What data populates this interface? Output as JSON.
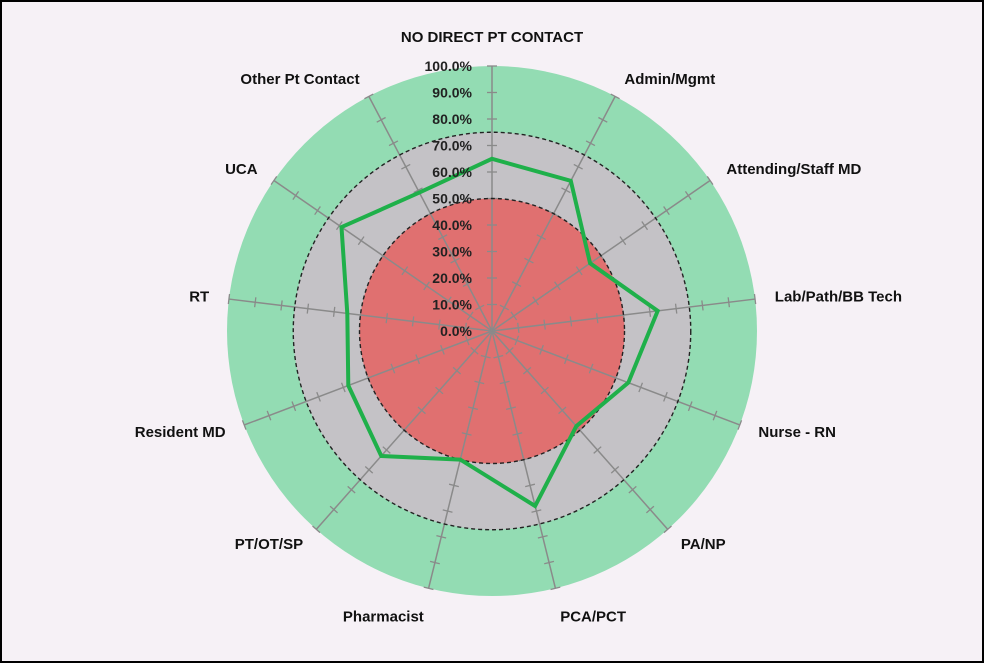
{
  "chart_data": {
    "type": "radar",
    "categories": [
      "NO DIRECT PT CONTACT",
      "Admin/Mgmt",
      "Attending/Staff MD",
      "Lab/Path/BB Tech",
      "Nurse - RN",
      "PA/NP",
      "PCA/PCT",
      "Pharmacist",
      "PT/OT/SP",
      "Resident MD",
      "RT",
      "UCA",
      "Other Pt Contact"
    ],
    "series": [
      {
        "values": [
          65,
          64,
          45,
          63,
          55,
          48,
          68,
          50,
          63,
          58,
          55,
          69,
          59
        ]
      }
    ],
    "radial_ticks": [
      "0.0%",
      "10.0%",
      "20.0%",
      "30.0%",
      "40.0%",
      "50.0%",
      "60.0%",
      "70.0%",
      "80.0%",
      "90.0%",
      "100.0%"
    ],
    "rmax": 100,
    "bands": [
      {
        "from": 0,
        "to": 50,
        "color": "#e07070"
      },
      {
        "from": 50,
        "to": 75,
        "color": "#c4c2c6"
      },
      {
        "from": 75,
        "to": 100,
        "color": "#93dcb3"
      }
    ],
    "line_color": "#1fb04a",
    "grid": true,
    "legend": "none"
  }
}
